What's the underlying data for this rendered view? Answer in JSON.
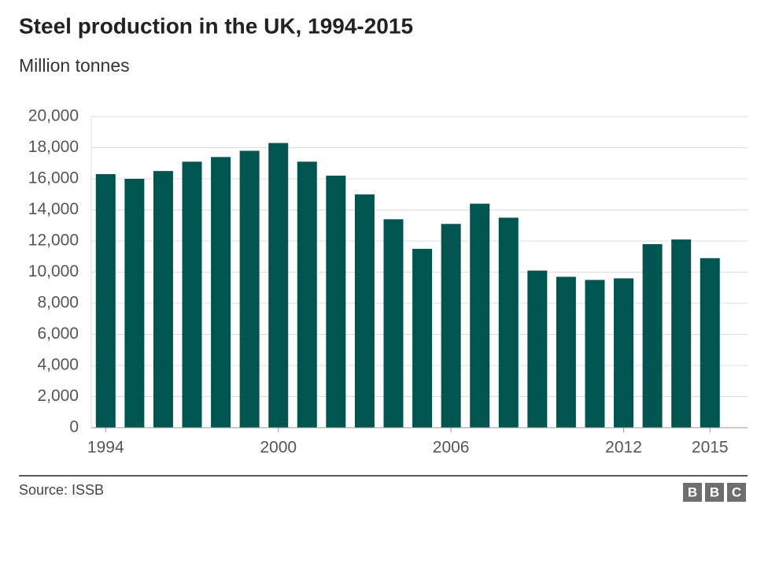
{
  "chart_data": {
    "type": "bar",
    "title": "Steel production in the UK, 1994-2015",
    "subtitle": "Million tonnes",
    "categories": [
      "1994",
      null,
      null,
      null,
      null,
      null,
      "2000",
      null,
      null,
      null,
      null,
      null,
      "2006",
      null,
      null,
      null,
      null,
      null,
      "2012",
      null,
      null,
      "2015"
    ],
    "values": [
      16300,
      16000,
      16500,
      17100,
      17400,
      17800,
      18300,
      17100,
      16200,
      15000,
      13400,
      11500,
      13100,
      14400,
      13500,
      10100,
      9700,
      9500,
      9600,
      11800,
      12100,
      10900
    ],
    "color": "#005550",
    "ylim": [
      0,
      20000
    ],
    "yticks": [
      0,
      {
        "value": 2000,
        "label": "2,000"
      },
      {
        "value": 4000,
        "label": "4,000"
      },
      {
        "value": 6000,
        "label": "6,000"
      },
      {
        "value": 8000,
        "label": "8,000"
      },
      {
        "value": 10000,
        "label": "10,000"
      },
      {
        "value": 12000,
        "label": "12,000"
      },
      {
        "value": 14000,
        "label": "14,000"
      },
      {
        "value": 16000,
        "label": "16,000"
      },
      {
        "value": 18000,
        "label": "18,000"
      },
      {
        "value": 20000,
        "label": "20,000"
      }
    ],
    "grid": true,
    "source": "Source: ISSB",
    "logo": [
      "B",
      "B",
      "C"
    ]
  }
}
